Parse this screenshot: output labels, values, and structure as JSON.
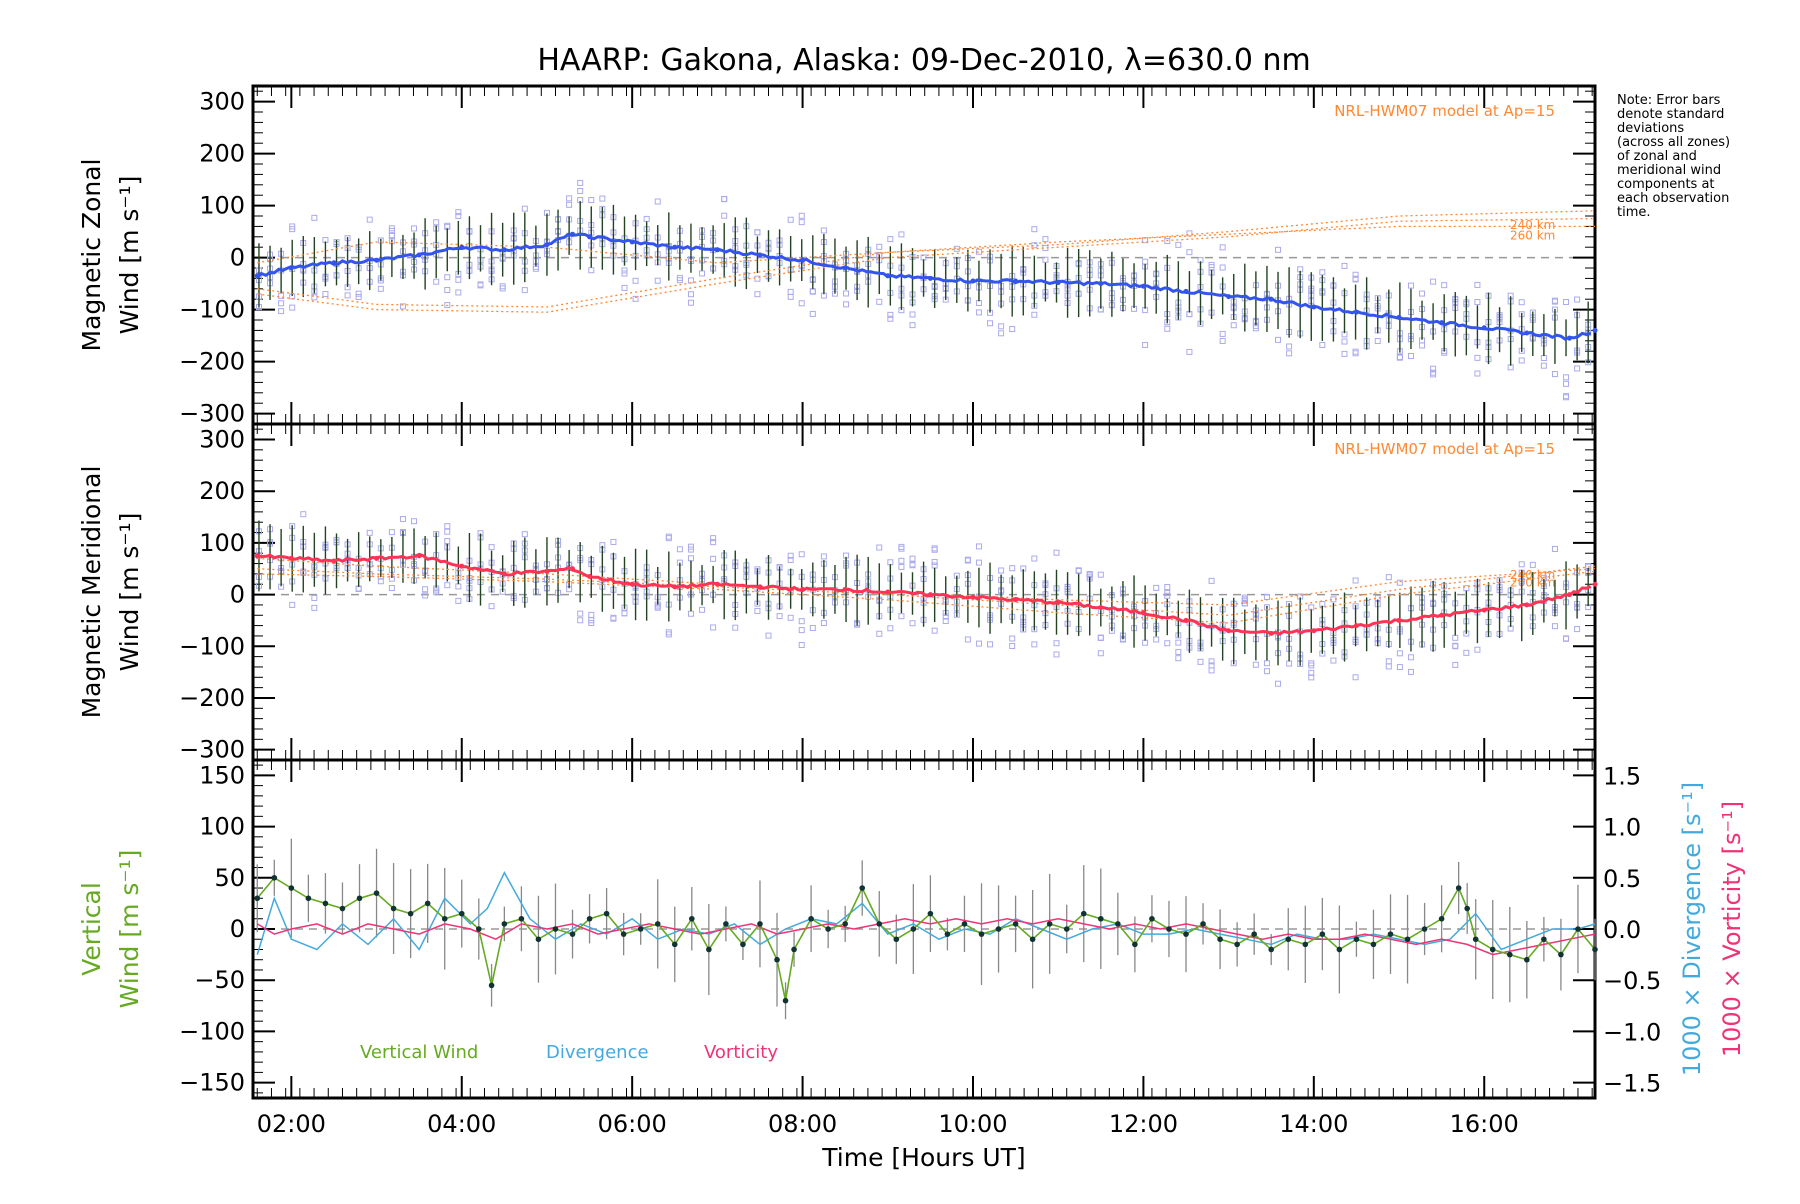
{
  "chart_data": {
    "type": "line",
    "title": "HAARP: Gakona,  Alaska: 09-Dec-2010, λ=630.0 nm",
    "xlabel": "Time [Hours UT]",
    "xrange": [
      1.55,
      17.3
    ],
    "x_ticks": [
      "02:00",
      "04:00",
      "06:00",
      "08:00",
      "10:00",
      "12:00",
      "14:00",
      "16:00"
    ],
    "x_tick_values": [
      2,
      4,
      6,
      8,
      10,
      12,
      14,
      16
    ],
    "note": [
      "Note: Error bars",
      "denote standard",
      "deviations",
      "(across all zones)",
      "of zonal and",
      "meridional wind",
      "components at",
      "each observation",
      "time."
    ],
    "panels": [
      {
        "id": "zonal",
        "ylabel_lines": [
          "Magnetic Zonal",
          "Wind [m s⁻¹]"
        ],
        "ylim": [
          -320,
          330
        ],
        "y_ticks": [
          300,
          200,
          100,
          0,
          -100,
          -200,
          -300
        ],
        "model_label": "NRL-HWM07 model at Ap=15",
        "model_altitudes": [
          "240 km",
          "260 km"
        ],
        "series": [
          {
            "name": "",
            "color": "#3355ee",
            "x": [
              1.6,
              2.0,
              2.5,
              3.0,
              3.5,
              4.0,
              4.5,
              5.0,
              5.3,
              5.5,
              6.0,
              6.5,
              7.0,
              7.5,
              8.0,
              8.5,
              9.0,
              9.5,
              10.0,
              10.5,
              11.0,
              11.5,
              12.0,
              12.5,
              13.0,
              13.5,
              14.0,
              14.5,
              15.0,
              15.5,
              16.0,
              16.5,
              17.0,
              17.3
            ],
            "y": [
              -35,
              -20,
              -10,
              -5,
              5,
              20,
              15,
              25,
              45,
              40,
              30,
              20,
              15,
              5,
              -5,
              -20,
              -35,
              -40,
              -45,
              -45,
              -48,
              -50,
              -55,
              -65,
              -75,
              -80,
              -95,
              -105,
              -115,
              -125,
              -135,
              -145,
              -155,
              -140
            ]
          }
        ]
      },
      {
        "id": "meridional",
        "ylabel_lines": [
          "Magnetic Meridional",
          "Wind [m s⁻¹]"
        ],
        "ylim": [
          -320,
          330
        ],
        "y_ticks": [
          300,
          200,
          100,
          0,
          -100,
          -200,
          -300
        ],
        "model_label": "NRL-HWM07 model at Ap=15",
        "model_altitudes": [
          "240 km",
          "260 km"
        ],
        "series": [
          {
            "name": "",
            "color": "#ff3355",
            "x": [
              1.6,
              2.0,
              2.5,
              3.0,
              3.5,
              4.0,
              4.5,
              5.0,
              5.3,
              5.5,
              6.0,
              6.5,
              7.0,
              7.5,
              8.0,
              8.5,
              9.0,
              9.5,
              10.0,
              10.5,
              11.0,
              11.5,
              12.0,
              12.5,
              13.0,
              13.5,
              14.0,
              14.5,
              15.0,
              15.5,
              16.0,
              16.5,
              17.0,
              17.3
            ],
            "y": [
              75,
              70,
              65,
              70,
              75,
              55,
              40,
              45,
              50,
              35,
              20,
              15,
              20,
              15,
              10,
              10,
              5,
              0,
              -5,
              -10,
              -15,
              -25,
              -35,
              -50,
              -70,
              -75,
              -70,
              -60,
              -50,
              -40,
              -30,
              -20,
              0,
              20
            ]
          }
        ]
      },
      {
        "id": "vertical",
        "ylabel_lines": [
          "Vertical",
          "Wind [m s⁻¹]"
        ],
        "ylim": [
          -165,
          165
        ],
        "y_ticks": [
          150,
          100,
          50,
          0,
          -50,
          -100,
          -150
        ],
        "right_ylabels": [
          "1000 × Divergence [s⁻¹]",
          "1000 × Vorticity [s⁻¹]"
        ],
        "right_ylim": [
          -1.65,
          1.65
        ],
        "right_ticks": [
          "1.5",
          "1.0",
          "0.5",
          "0.0",
          "-0.5",
          "-1.0",
          "-1.5"
        ],
        "right_tick_values": [
          1.5,
          1.0,
          0.5,
          0.0,
          -0.5,
          -1.0,
          -1.5
        ],
        "series": [
          {
            "name": "Vertical Wind",
            "color": "#66aa22",
            "x": [
              1.6,
              1.8,
              2.0,
              2.2,
              2.4,
              2.6,
              2.8,
              3.0,
              3.2,
              3.4,
              3.6,
              3.8,
              4.0,
              4.2,
              4.35,
              4.5,
              4.7,
              4.9,
              5.1,
              5.3,
              5.5,
              5.7,
              5.9,
              6.1,
              6.3,
              6.5,
              6.7,
              6.9,
              7.1,
              7.3,
              7.5,
              7.7,
              7.8,
              7.9,
              8.1,
              8.3,
              8.5,
              8.7,
              8.9,
              9.1,
              9.3,
              9.5,
              9.7,
              9.9,
              10.1,
              10.3,
              10.5,
              10.7,
              10.9,
              11.1,
              11.3,
              11.5,
              11.7,
              11.9,
              12.1,
              12.3,
              12.5,
              12.7,
              12.9,
              13.1,
              13.3,
              13.5,
              13.7,
              13.9,
              14.1,
              14.3,
              14.5,
              14.7,
              14.9,
              15.1,
              15.3,
              15.5,
              15.7,
              15.8,
              15.9,
              16.1,
              16.3,
              16.5,
              16.7,
              16.9,
              17.1,
              17.3
            ],
            "y": [
              30,
              50,
              40,
              30,
              25,
              20,
              30,
              35,
              20,
              15,
              25,
              10,
              15,
              0,
              -55,
              5,
              10,
              -10,
              0,
              -5,
              10,
              15,
              -5,
              0,
              5,
              -15,
              10,
              -20,
              5,
              -15,
              5,
              -30,
              -70,
              -20,
              10,
              0,
              5,
              40,
              5,
              -10,
              0,
              15,
              -5,
              5,
              -5,
              0,
              5,
              -10,
              5,
              0,
              15,
              10,
              5,
              -15,
              10,
              0,
              -5,
              5,
              -10,
              -15,
              -5,
              -20,
              -10,
              -15,
              -5,
              -20,
              -10,
              -15,
              -5,
              -10,
              0,
              10,
              40,
              20,
              -10,
              -20,
              -25,
              -30,
              -10,
              -25,
              0,
              -20
            ]
          },
          {
            "name": "Divergence",
            "color": "#44aadd",
            "x": [
              1.6,
              1.8,
              2.0,
              2.3,
              2.6,
              2.9,
              3.2,
              3.5,
              3.8,
              4.1,
              4.3,
              4.5,
              4.8,
              5.1,
              5.4,
              5.7,
              6.0,
              6.3,
              6.6,
              6.9,
              7.2,
              7.5,
              7.8,
              8.1,
              8.4,
              8.7,
              9.0,
              9.3,
              9.6,
              9.9,
              10.2,
              10.5,
              10.8,
              11.1,
              11.4,
              11.7,
              12.0,
              12.3,
              12.6,
              12.9,
              13.2,
              13.5,
              13.8,
              14.1,
              14.4,
              14.7,
              15.0,
              15.3,
              15.6,
              15.9,
              16.2,
              16.5,
              16.8,
              17.1,
              17.3
            ],
            "y": [
              -0.25,
              0.3,
              -0.1,
              -0.2,
              0.05,
              -0.15,
              0.1,
              -0.2,
              0.3,
              0.05,
              0.2,
              0.55,
              0.1,
              -0.1,
              0.05,
              -0.05,
              0.1,
              -0.1,
              0.0,
              -0.05,
              0.05,
              -0.15,
              0.0,
              0.1,
              0.05,
              0.25,
              -0.05,
              0.05,
              -0.1,
              0.0,
              -0.05,
              0.1,
              0.0,
              -0.1,
              0.0,
              0.05,
              -0.05,
              -0.05,
              0.0,
              -0.05,
              -0.1,
              -0.15,
              -0.05,
              -0.1,
              -0.1,
              -0.05,
              -0.1,
              -0.15,
              -0.1,
              0.15,
              -0.2,
              -0.1,
              0.0,
              0.0,
              0.05
            ]
          },
          {
            "name": "Vorticity",
            "color": "#ee3377",
            "x": [
              1.6,
              1.8,
              2.0,
              2.3,
              2.6,
              2.9,
              3.2,
              3.5,
              3.8,
              4.1,
              4.4,
              4.7,
              5.0,
              5.3,
              5.6,
              5.9,
              6.2,
              6.5,
              6.8,
              7.1,
              7.4,
              7.7,
              8.0,
              8.3,
              8.6,
              8.9,
              9.2,
              9.5,
              9.8,
              10.1,
              10.4,
              10.7,
              11.0,
              11.3,
              11.6,
              11.9,
              12.2,
              12.5,
              12.8,
              13.1,
              13.4,
              13.7,
              14.0,
              14.3,
              14.6,
              14.9,
              15.2,
              15.5,
              15.8,
              16.1,
              16.4,
              16.7,
              17.0,
              17.3
            ],
            "y": [
              0.05,
              -0.05,
              0.0,
              0.05,
              -0.05,
              0.05,
              0.0,
              -0.05,
              0.05,
              0.0,
              -0.1,
              0.05,
              0.0,
              0.05,
              -0.05,
              0.0,
              0.05,
              0.0,
              -0.05,
              0.0,
              0.05,
              -0.05,
              0.0,
              0.05,
              0.0,
              0.05,
              0.1,
              0.05,
              0.1,
              0.05,
              0.1,
              0.05,
              0.1,
              0.05,
              0.0,
              0.05,
              0.0,
              0.05,
              0.0,
              -0.05,
              -0.1,
              -0.05,
              -0.1,
              -0.1,
              -0.05,
              -0.1,
              -0.15,
              -0.1,
              -0.15,
              -0.25,
              -0.2,
              -0.15,
              -0.1,
              -0.05
            ]
          }
        ],
        "legend": [
          "Vertical Wind",
          "Divergence",
          "Vorticity"
        ],
        "legend_placement": "bottom-left"
      }
    ]
  }
}
